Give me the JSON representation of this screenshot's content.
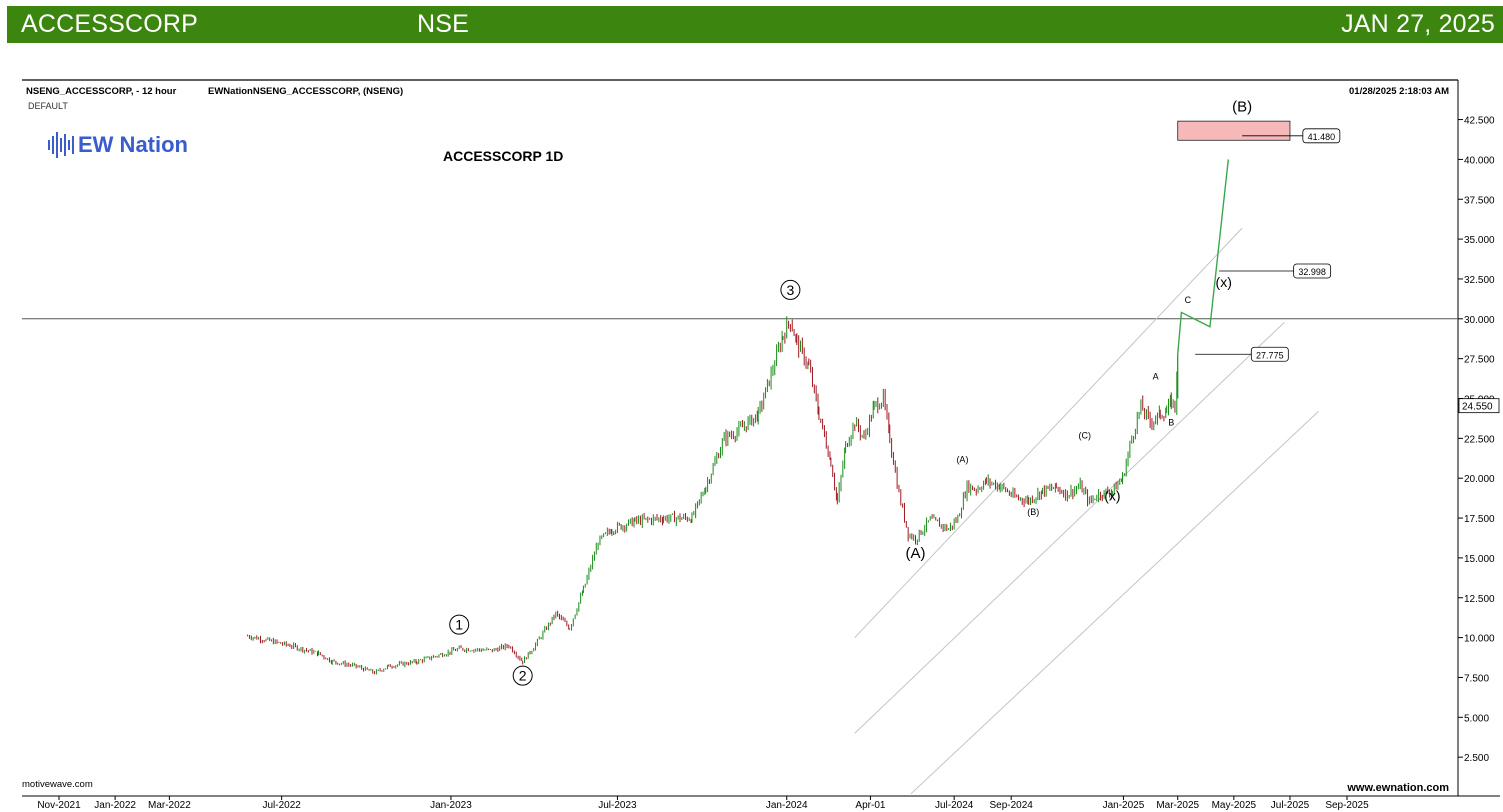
{
  "banner": {
    "symbol": "ACCESSCORP",
    "exchange": "NSE",
    "date": "JAN 27, 2025"
  },
  "header": {
    "instrument": "NSENG_ACCESSCORP, - 12 hour",
    "study": "EWNationNSENG_ACCESSCORP, (NSENG)",
    "default_label": "DEFAULT",
    "timestamp": "01/28/2025 2:18:03 AM"
  },
  "logo": {
    "text": "EW Nation",
    "icon": "soundwave-bars-icon"
  },
  "footer": {
    "left": "motivewave.com",
    "right": "www.ewnation.com"
  },
  "colors": {
    "banner": "#3c860f",
    "up": "#1a8a1a",
    "down": "#a01822",
    "projection": "#3aa84a",
    "target_zone": "#f6b8b8",
    "channel": "#c4c4c4"
  },
  "chart_data": {
    "type": "candlestick",
    "title": "ACCESSCORP 1D",
    "xlabel": "",
    "ylabel": "",
    "ylim": [
      0,
      44
    ],
    "xlim": [
      "2021-11-01",
      "2025-09-25"
    ],
    "grid": false,
    "x_ticks": [
      {
        "date": "2021-11-01",
        "label": "Nov-2021"
      },
      {
        "date": "2022-01-01",
        "label": "Jan-2022"
      },
      {
        "date": "2022-03-01",
        "label": "Mar-2022"
      },
      {
        "date": "2022-07-01",
        "label": "Jul-2022"
      },
      {
        "date": "2023-01-01",
        "label": "Jan-2023"
      },
      {
        "date": "2023-07-01",
        "label": "Jul-2023"
      },
      {
        "date": "2024-01-01",
        "label": "Jan-2024"
      },
      {
        "date": "2024-04-01",
        "label": "Apr-01"
      },
      {
        "date": "2024-07-01",
        "label": "Jul-2024"
      },
      {
        "date": "2024-09-01",
        "label": "Sep-2024"
      },
      {
        "date": "2025-01-01",
        "label": "Jan-2025"
      },
      {
        "date": "2025-03-01",
        "label": "Mar-2025"
      },
      {
        "date": "2025-05-01",
        "label": "May-2025"
      },
      {
        "date": "2025-07-01",
        "label": "Jul-2025"
      },
      {
        "date": "2025-09-01",
        "label": "Sep-2025"
      }
    ],
    "y_ticks": [
      "2.500",
      "5.000",
      "7.500",
      "10.000",
      "12.500",
      "15.000",
      "17.500",
      "20.000",
      "22.500",
      "25.000",
      "27.500",
      "30.000",
      "32.500",
      "35.000",
      "37.500",
      "40.000",
      "42.500"
    ],
    "price_path": [
      [
        "2022-05-25",
        10.1
      ],
      [
        "2022-06-10",
        9.9
      ],
      [
        "2022-07-10",
        9.5
      ],
      [
        "2022-08-10",
        9.0
      ],
      [
        "2022-08-25",
        8.5
      ],
      [
        "2022-09-20",
        8.2
      ],
      [
        "2022-10-10",
        7.8
      ],
      [
        "2022-10-25",
        8.2
      ],
      [
        "2022-11-25",
        8.5
      ],
      [
        "2022-12-25",
        9.0
      ],
      [
        "2023-01-10",
        9.3
      ],
      [
        "2023-02-15",
        9.2
      ],
      [
        "2023-03-05",
        9.5
      ],
      [
        "2023-03-20",
        8.5
      ],
      [
        "2023-04-01",
        9.4
      ],
      [
        "2023-04-25",
        11.5
      ],
      [
        "2023-05-10",
        10.6
      ],
      [
        "2023-05-25",
        13.0
      ],
      [
        "2023-06-10",
        16.0
      ],
      [
        "2023-06-25",
        16.8
      ],
      [
        "2023-07-20",
        17.3
      ],
      [
        "2023-08-20",
        17.5
      ],
      [
        "2023-09-20",
        17.5
      ],
      [
        "2023-10-05",
        19.5
      ],
      [
        "2023-10-25",
        22.5
      ],
      [
        "2023-11-10",
        23.0
      ],
      [
        "2023-12-01",
        24.0
      ],
      [
        "2023-12-15",
        26.5
      ],
      [
        "2023-12-28",
        29.0
      ],
      [
        "2024-01-05",
        29.9
      ],
      [
        "2024-01-12",
        28.5
      ],
      [
        "2024-01-25",
        27.0
      ],
      [
        "2024-02-05",
        24.0
      ],
      [
        "2024-02-18",
        21.0
      ],
      [
        "2024-02-25",
        18.5
      ],
      [
        "2024-03-05",
        22.0
      ],
      [
        "2024-03-15",
        23.5
      ],
      [
        "2024-03-25",
        22.5
      ],
      [
        "2024-04-05",
        24.5
      ],
      [
        "2024-04-15",
        25.0
      ],
      [
        "2024-04-22",
        22.5
      ],
      [
        "2024-05-02",
        19.0
      ],
      [
        "2024-05-12",
        16.5
      ],
      [
        "2024-05-20",
        16.2
      ],
      [
        "2024-06-05",
        17.4
      ],
      [
        "2024-06-25",
        16.8
      ],
      [
        "2024-07-05",
        17.5
      ],
      [
        "2024-07-15",
        19.5
      ],
      [
        "2024-07-25",
        19.3
      ],
      [
        "2024-08-05",
        19.8
      ],
      [
        "2024-08-20",
        19.5
      ],
      [
        "2024-09-05",
        18.8
      ],
      [
        "2024-09-20",
        18.6
      ],
      [
        "2024-10-05",
        19.2
      ],
      [
        "2024-10-20",
        19.4
      ],
      [
        "2024-11-01",
        19.0
      ],
      [
        "2024-11-15",
        19.5
      ],
      [
        "2024-11-25",
        18.5
      ],
      [
        "2024-12-05",
        19.0
      ],
      [
        "2024-12-20",
        19.2
      ],
      [
        "2024-12-31",
        20.0
      ],
      [
        "2025-01-10",
        22.5
      ],
      [
        "2025-01-20",
        24.5
      ],
      [
        "2025-01-30",
        23.5
      ],
      [
        "2025-02-10",
        24.0
      ],
      [
        "2025-02-17",
        24.2
      ],
      [
        "2025-02-22",
        24.8
      ],
      [
        "2025-02-26",
        24.5
      ],
      [
        "2025-03-01",
        27.775
      ]
    ],
    "projection": [
      [
        "2025-03-05",
        30.4
      ],
      [
        "2025-04-05",
        29.5
      ],
      [
        "2025-04-25",
        40.0
      ]
    ],
    "reference_line": 30.0,
    "target_zone": [
      41.2,
      42.4
    ],
    "price_labels": [
      {
        "value": "41.480",
        "date": "2025-07-15"
      },
      {
        "value": "32.998",
        "date": "2025-07-05"
      },
      {
        "value": "27.775",
        "date": "2025-05-20"
      }
    ],
    "last_price": "24.550",
    "wave_labels": [
      {
        "text": "1",
        "date": "2023-01-10",
        "y": 10.5,
        "circled": true
      },
      {
        "text": "2",
        "date": "2023-03-20",
        "y": 7.3,
        "circled": true
      },
      {
        "text": "3",
        "date": "2024-01-05",
        "y": 31.5,
        "circled": true
      },
      {
        "text": "(A)",
        "date": "2024-05-20",
        "y": 15.0,
        "size": "lg"
      },
      {
        "text": "(A)",
        "date": "2024-07-10",
        "y": 21.0,
        "size": "sm"
      },
      {
        "text": "(B)",
        "date": "2024-09-25",
        "y": 17.7,
        "size": "sm"
      },
      {
        "text": "(C)",
        "date": "2024-11-20",
        "y": 22.5,
        "size": "sm"
      },
      {
        "text": "(x)",
        "date": "2024-12-20",
        "y": 18.6,
        "size": "serif"
      },
      {
        "text": "A",
        "date": "2025-02-05",
        "y": 26.2,
        "size": "sm"
      },
      {
        "text": "B",
        "date": "2025-02-22",
        "y": 23.3,
        "size": "sm"
      },
      {
        "text": "C",
        "date": "2025-03-12",
        "y": 31.0,
        "size": "sm"
      },
      {
        "text": "(x)",
        "date": "2025-04-20",
        "y": 32.0,
        "size": "serif"
      },
      {
        "text": "(B)",
        "date": "2025-05-10",
        "y": 43.0,
        "size": "lg"
      }
    ]
  }
}
